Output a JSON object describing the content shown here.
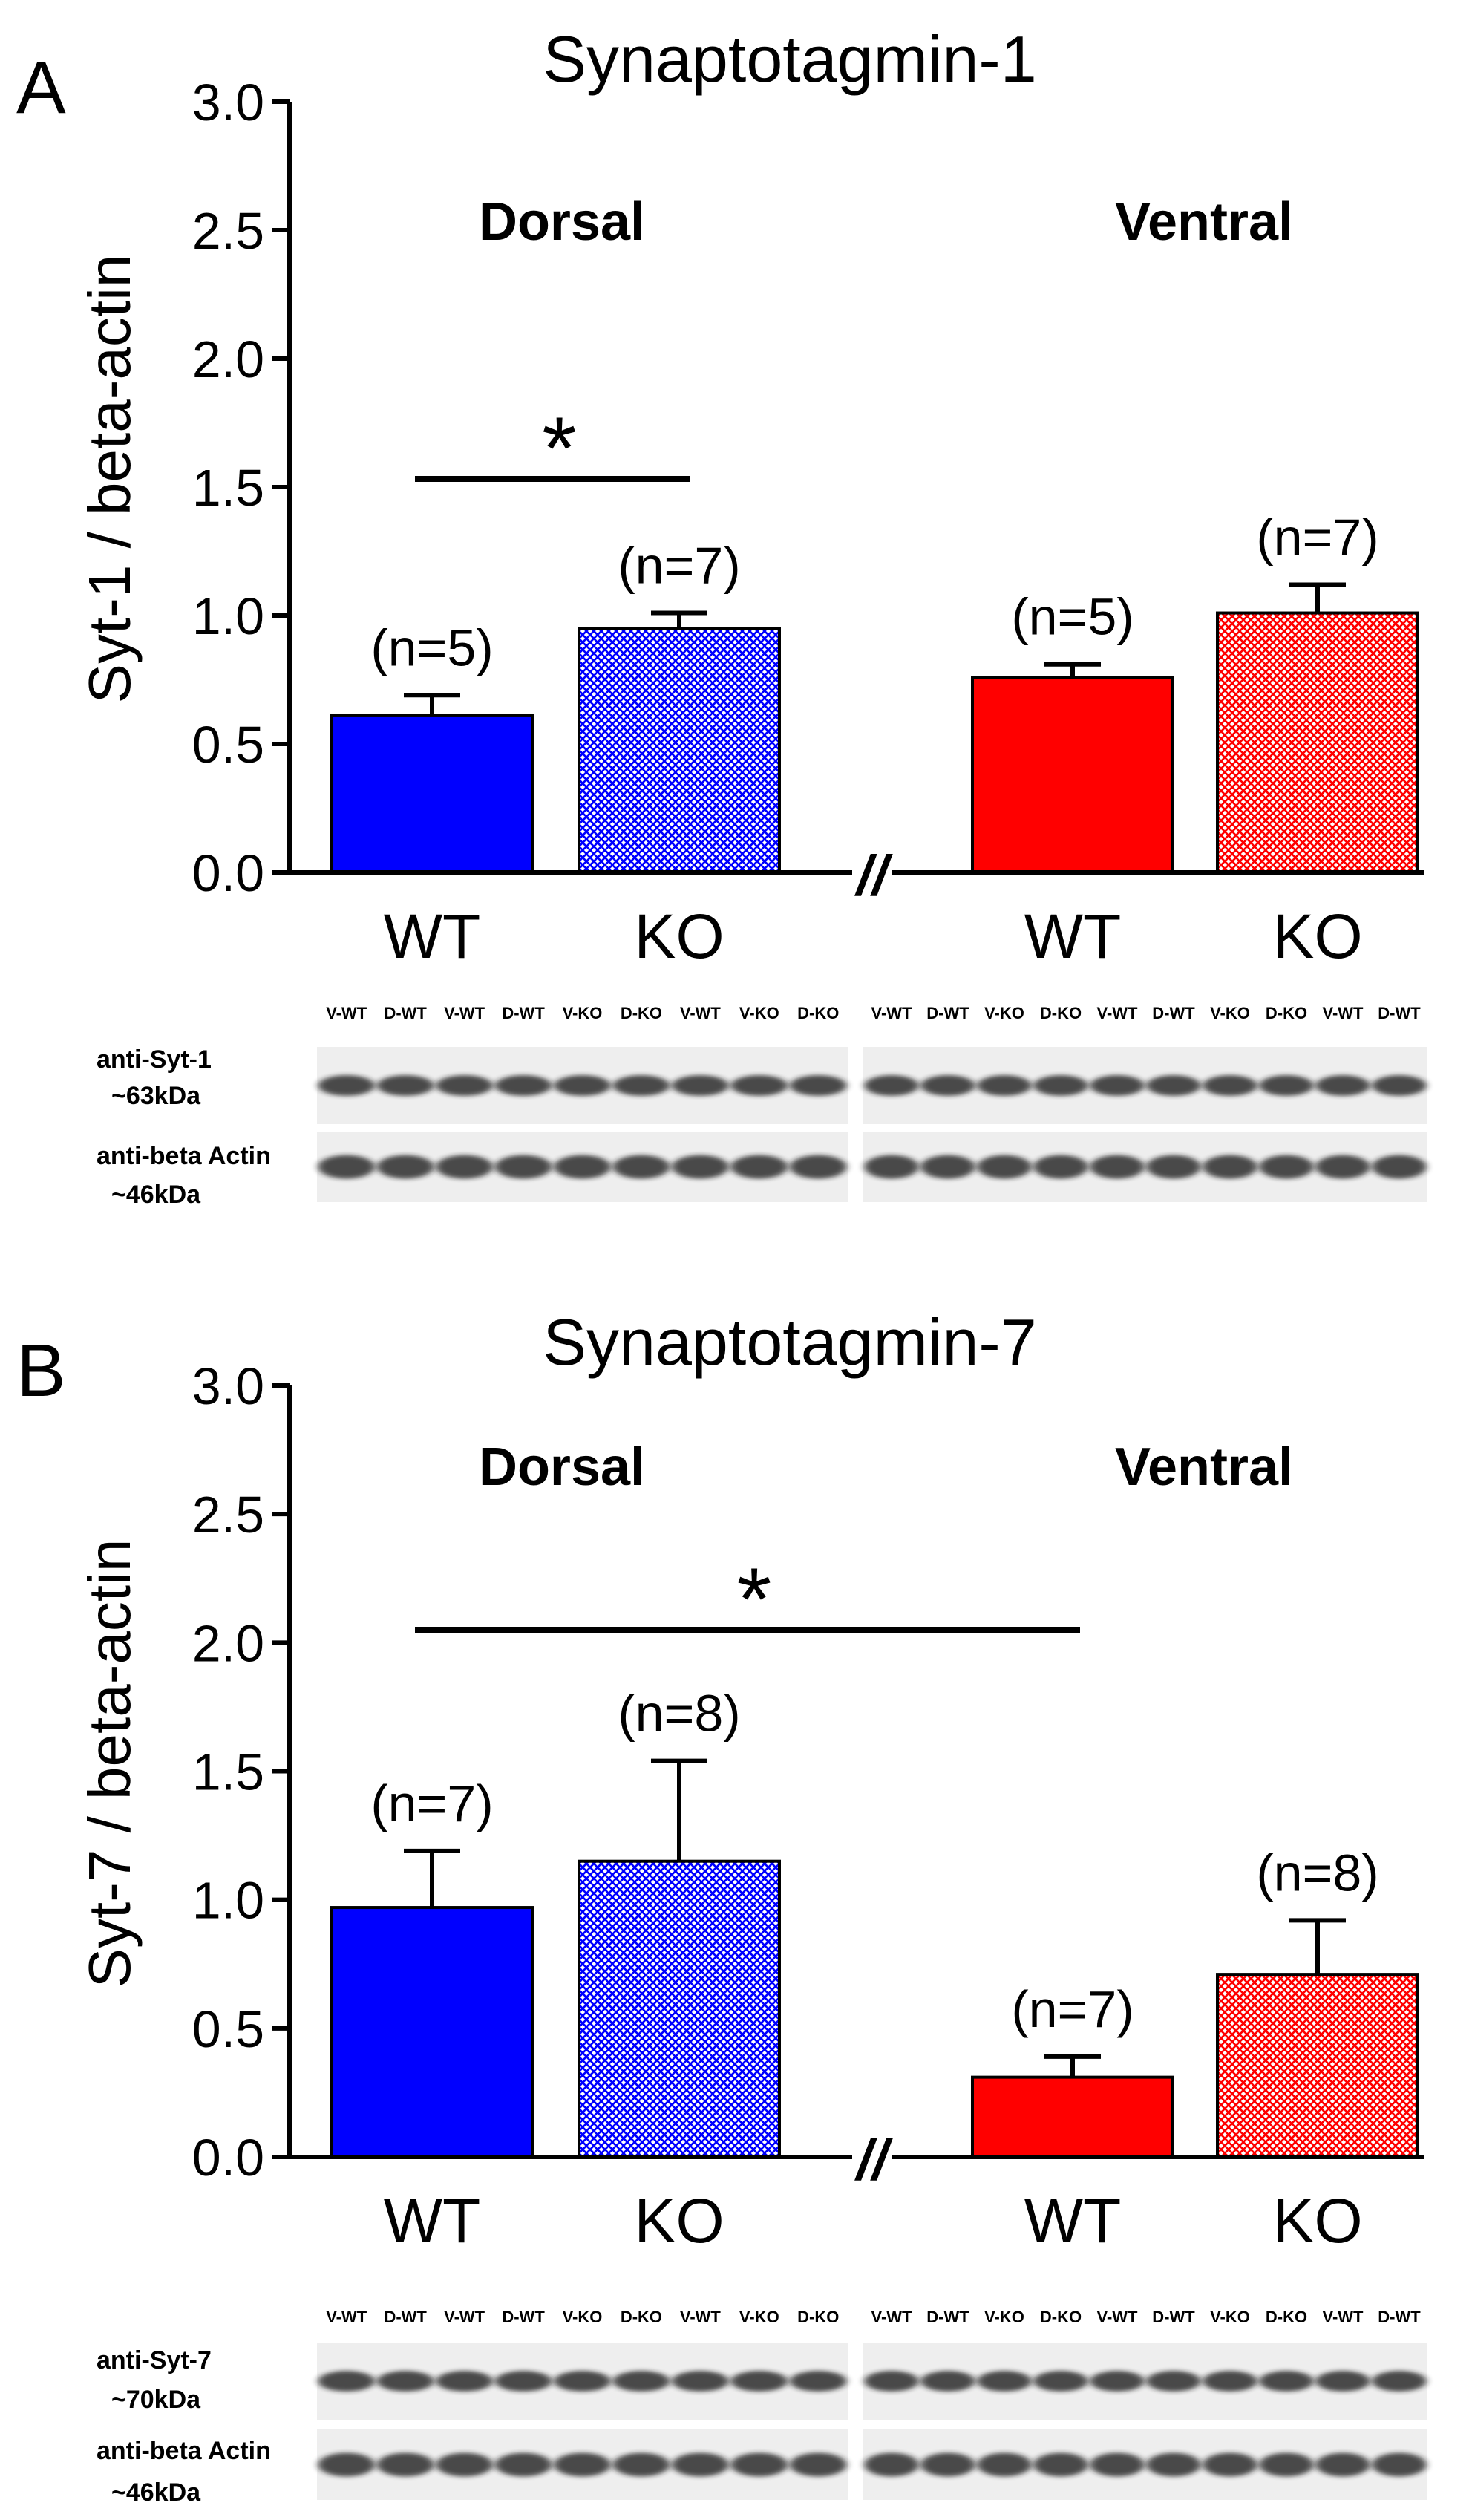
{
  "colors": {
    "dorsal": "#0000ff",
    "ventral": "#ff0000",
    "axis": "#000000",
    "blot_bg": "#eeeeee",
    "band": "#1a1a1a"
  },
  "chart_data": [
    {
      "panel_label": "A",
      "type": "bar",
      "title": "Synaptotagmin-1",
      "ylabel": "Syt-1 / beta-actin",
      "ylim": [
        0,
        3.0
      ],
      "yticks": [
        "0.0",
        "0.5",
        "1.0",
        "1.5",
        "2.0",
        "2.5",
        "3.0"
      ],
      "ytick_values": [
        0,
        0.5,
        1.0,
        1.5,
        2.0,
        2.5,
        3.0
      ],
      "groups": [
        "Dorsal",
        "Ventral"
      ],
      "axis_break": "//",
      "bars": [
        {
          "group": "Dorsal",
          "category": "WT",
          "value": 0.61,
          "error": 0.08,
          "n_label": "(n=5)",
          "pattern": "solid"
        },
        {
          "group": "Dorsal",
          "category": "KO",
          "value": 0.95,
          "error": 0.06,
          "n_label": "(n=7)",
          "pattern": "hatched"
        },
        {
          "group": "Ventral",
          "category": "WT",
          "value": 0.76,
          "error": 0.05,
          "n_label": "(n=5)",
          "pattern": "solid"
        },
        {
          "group": "Ventral",
          "category": "KO",
          "value": 1.01,
          "error": 0.11,
          "n_label": "(n=7)",
          "pattern": "hatched"
        }
      ],
      "significance": {
        "symbol": "*",
        "from_bar": 0,
        "to_bar": 1
      },
      "blots": {
        "left_lanes": [
          "V-WT",
          "D-WT",
          "V-WT",
          "D-WT",
          "V-KO",
          "D-KO",
          "V-WT",
          "V-KO",
          "D-KO"
        ],
        "right_lanes": [
          "V-WT",
          "D-WT",
          "V-KO",
          "D-KO",
          "V-WT",
          "D-WT",
          "V-KO",
          "D-KO",
          "V-WT",
          "D-WT"
        ],
        "rows": [
          {
            "label_line1": "anti-Syt-1",
            "label_line2": "~63kDa"
          },
          {
            "label_line1": "anti-beta Actin",
            "label_line2": "~46kDa"
          }
        ]
      }
    },
    {
      "panel_label": "B",
      "type": "bar",
      "title": "Synaptotagmin-7",
      "ylabel": "Syt-7 / beta-actin",
      "ylim": [
        0,
        3.0
      ],
      "yticks": [
        "0.0",
        "0.5",
        "1.0",
        "1.5",
        "2.0",
        "2.5",
        "3.0"
      ],
      "ytick_values": [
        0,
        0.5,
        1.0,
        1.5,
        2.0,
        2.5,
        3.0
      ],
      "groups": [
        "Dorsal",
        "Ventral"
      ],
      "axis_break": "//",
      "bars": [
        {
          "group": "Dorsal",
          "category": "WT",
          "value": 0.97,
          "error": 0.22,
          "n_label": "(n=7)",
          "pattern": "solid"
        },
        {
          "group": "Dorsal",
          "category": "KO",
          "value": 1.15,
          "error": 0.39,
          "n_label": "(n=8)",
          "pattern": "hatched"
        },
        {
          "group": "Ventral",
          "category": "WT",
          "value": 0.31,
          "error": 0.08,
          "n_label": "(n=7)",
          "pattern": "solid"
        },
        {
          "group": "Ventral",
          "category": "KO",
          "value": 0.71,
          "error": 0.21,
          "n_label": "(n=8)",
          "pattern": "hatched"
        }
      ],
      "significance": {
        "symbol": "*",
        "from_bar": 0,
        "to_bar": 2
      },
      "blots": {
        "left_lanes": [
          "V-WT",
          "D-WT",
          "V-WT",
          "D-WT",
          "V-KO",
          "D-KO",
          "V-WT",
          "V-KO",
          "D-KO"
        ],
        "right_lanes": [
          "V-WT",
          "D-WT",
          "V-KO",
          "D-KO",
          "V-WT",
          "D-WT",
          "V-KO",
          "D-KO",
          "V-WT",
          "D-WT"
        ],
        "rows": [
          {
            "label_line1": "anti-Syt-7",
            "label_line2": "~70kDa"
          },
          {
            "label_line1": "anti-beta Actin",
            "label_line2": "~46kDa"
          }
        ]
      }
    }
  ]
}
